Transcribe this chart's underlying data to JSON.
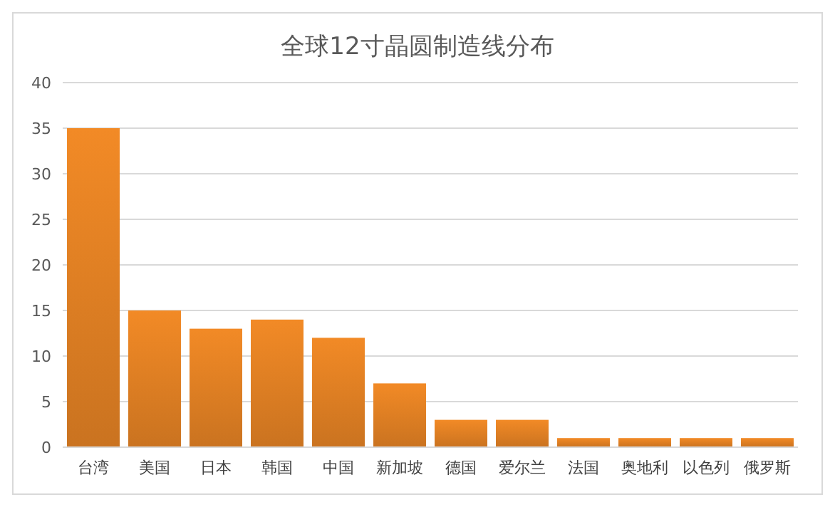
{
  "chart_data": {
    "type": "bar",
    "title": "全球12寸晶圆制造线分布",
    "categories": [
      "台湾",
      "美国",
      "日本",
      "韩国",
      "中国",
      "新加坡",
      "德国",
      "爱尔兰",
      "法国",
      "奥地利",
      "以色列",
      "俄罗斯"
    ],
    "values": [
      35,
      15,
      13,
      14,
      12,
      7,
      3,
      3,
      1,
      1,
      1,
      1
    ],
    "color": "#f28a26",
    "ylim": [
      0,
      40
    ],
    "yticks": [
      0,
      5,
      10,
      15,
      20,
      25,
      30,
      35,
      40
    ],
    "grid": "y"
  }
}
